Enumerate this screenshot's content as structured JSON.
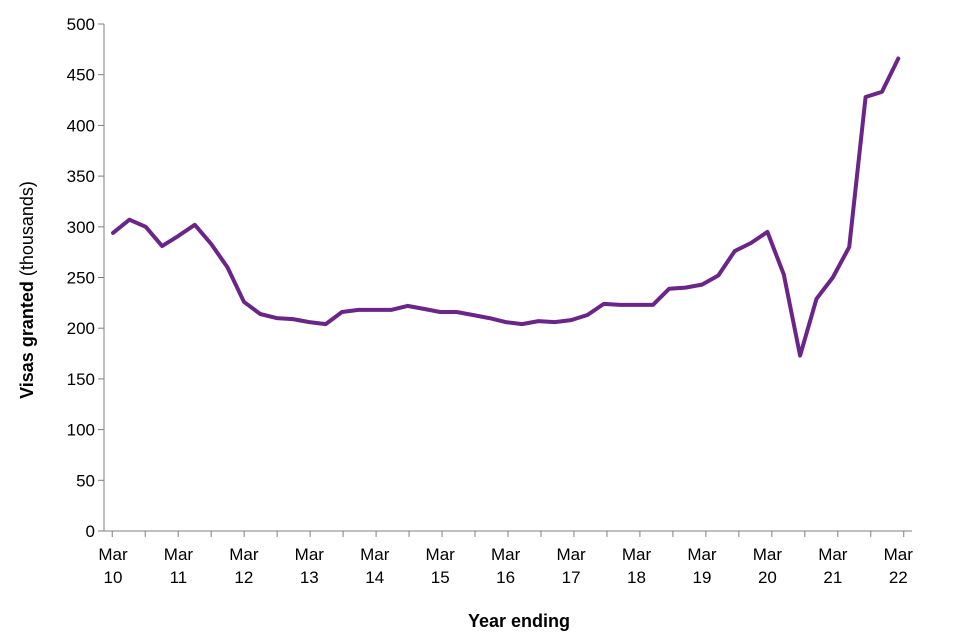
{
  "chart_data": {
    "type": "line",
    "xlabel": "Year ending",
    "ylabel_bold": "Visas granted",
    "ylabel_rest": " (thousands)",
    "ylim": [
      0,
      500
    ],
    "yticks": [
      0,
      50,
      100,
      150,
      200,
      250,
      300,
      350,
      400,
      450,
      500
    ],
    "grid": false,
    "legend": "none",
    "x_tick_labels": [
      {
        "line1": "Mar",
        "line2": "10"
      },
      {
        "line1": "Mar",
        "line2": "11"
      },
      {
        "line1": "Mar",
        "line2": "12"
      },
      {
        "line1": "Mar",
        "line2": "13"
      },
      {
        "line1": "Mar",
        "line2": "14"
      },
      {
        "line1": "Mar",
        "line2": "15"
      },
      {
        "line1": "Mar",
        "line2": "16"
      },
      {
        "line1": "Mar",
        "line2": "17"
      },
      {
        "line1": "Mar",
        "line2": "18"
      },
      {
        "line1": "Mar",
        "line2": "19"
      },
      {
        "line1": "Mar",
        "line2": "20"
      },
      {
        "line1": "Mar",
        "line2": "21"
      },
      {
        "line1": "Mar",
        "line2": "22"
      }
    ],
    "series": [
      {
        "color": "#6b2487",
        "x": [
          "Mar 2010",
          "Jun 2010",
          "Sep 2010",
          "Dec 2010",
          "Mar 2011",
          "Jun 2011",
          "Sep 2011",
          "Dec 2011",
          "Mar 2012",
          "Jun 2012",
          "Sep 2012",
          "Dec 2012",
          "Mar 2013",
          "Jun 2013",
          "Sep 2013",
          "Dec 2013",
          "Mar 2014",
          "Jun 2014",
          "Sep 2014",
          "Dec 2014",
          "Mar 2015",
          "Jun 2015",
          "Sep 2015",
          "Dec 2015",
          "Mar 2016",
          "Jun 2016",
          "Sep 2016",
          "Dec 2016",
          "Mar 2017",
          "Jun 2017",
          "Sep 2017",
          "Dec 2017",
          "Mar 2018",
          "Jun 2018",
          "Sep 2018",
          "Dec 2018",
          "Mar 2019",
          "Jun 2019",
          "Sep 2019",
          "Dec 2019",
          "Mar 2020",
          "Jun 2020",
          "Sep 2020",
          "Dec 2020",
          "Mar 2021",
          "Jun 2021",
          "Sep 2021",
          "Dec 2021",
          "Mar 2022"
        ],
        "values": [
          294,
          307,
          300,
          281,
          291,
          302,
          283,
          260,
          226,
          214,
          210,
          209,
          206,
          204,
          216,
          218,
          218,
          218,
          222,
          219,
          216,
          216,
          213,
          210,
          206,
          204,
          207,
          206,
          208,
          213,
          224,
          223,
          223,
          223,
          239,
          240,
          243,
          252,
          276,
          284,
          295,
          253,
          173,
          229,
          250,
          280,
          428,
          433,
          466
        ]
      }
    ]
  }
}
